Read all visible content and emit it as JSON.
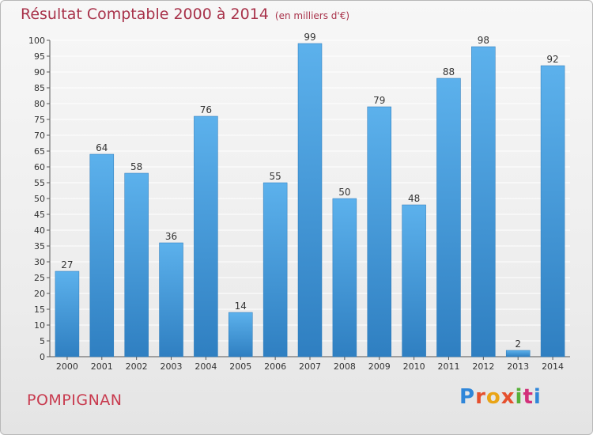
{
  "title": "Résultat Comptable 2000 à 2014",
  "title_unit": "(en milliers d'€)",
  "commune": "POMPIGNAN",
  "logo": "Proxiti",
  "colors": {
    "bar_top": "#5cb1ec",
    "bar_bottom": "#2f7fc1",
    "title": "#a8324a",
    "commune": "#c83a4e",
    "grid": "#ffffff"
  },
  "chart_data": {
    "type": "bar",
    "title": "Résultat Comptable 2000 à 2014",
    "xlabel": "",
    "ylabel": "",
    "ylim": [
      0,
      100
    ],
    "yticks": [
      0,
      5,
      10,
      15,
      20,
      25,
      30,
      35,
      40,
      45,
      50,
      55,
      60,
      65,
      70,
      75,
      80,
      85,
      90,
      95,
      100
    ],
    "grid": true,
    "categories": [
      "2000",
      "2001",
      "2002",
      "2003",
      "2004",
      "2005",
      "2006",
      "2007",
      "2008",
      "2009",
      "2010",
      "2011",
      "2012",
      "2013",
      "2014"
    ],
    "values": [
      27,
      64,
      58,
      36,
      76,
      14,
      55,
      99,
      50,
      79,
      48,
      88,
      98,
      2,
      92
    ]
  }
}
